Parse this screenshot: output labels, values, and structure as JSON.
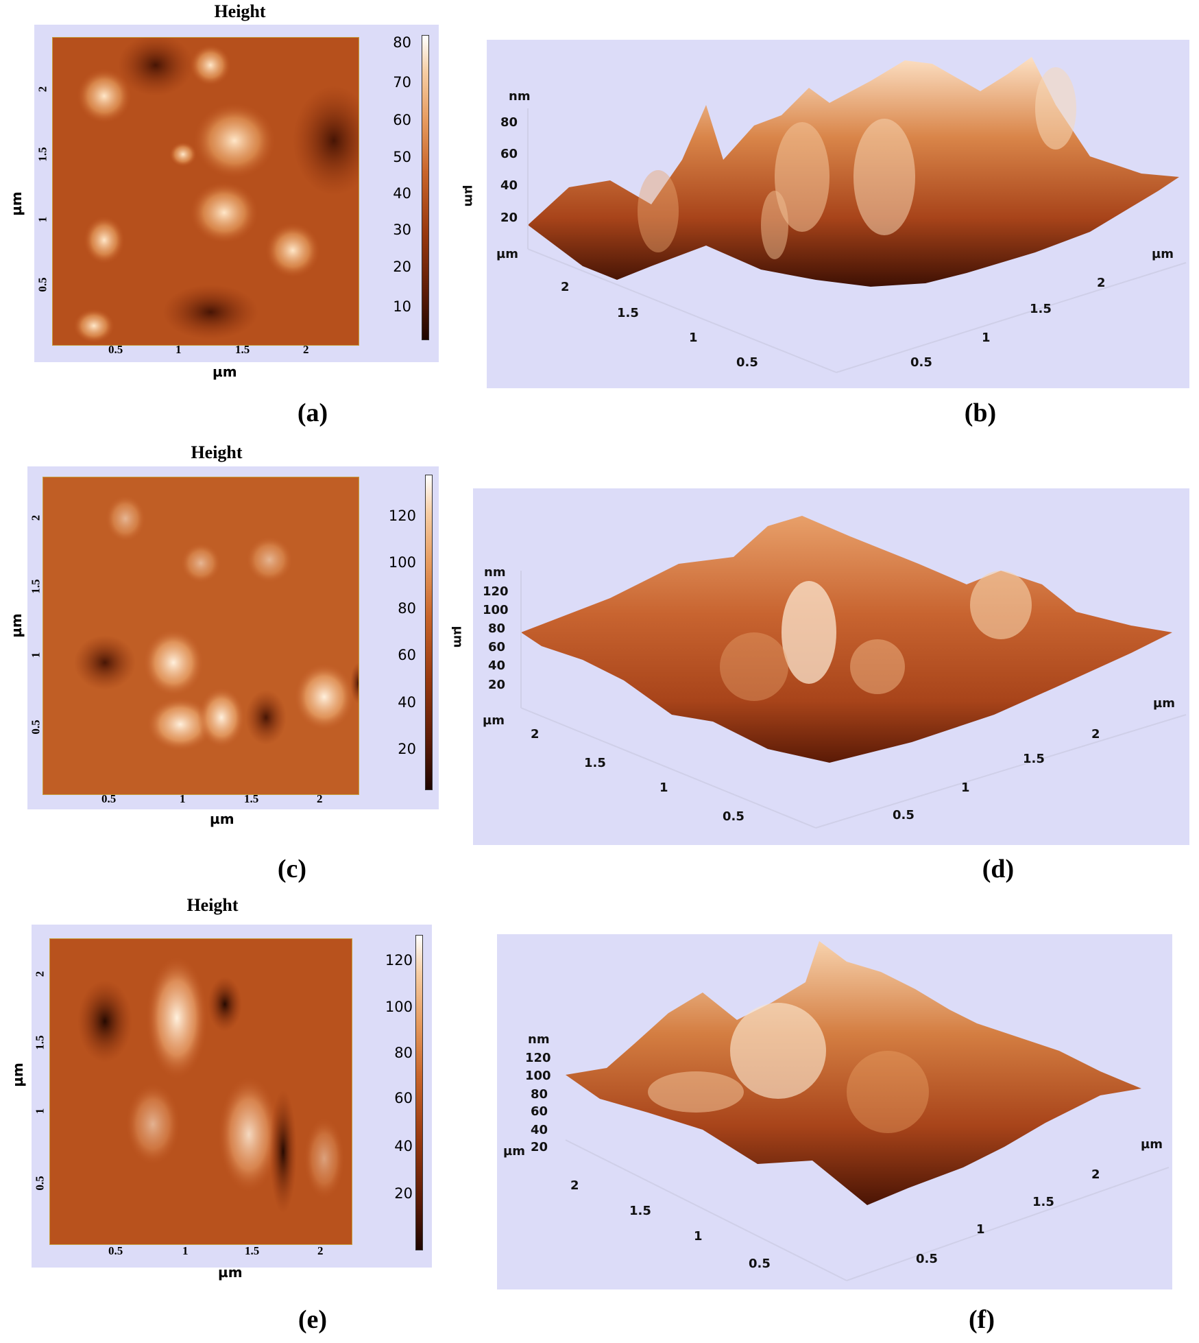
{
  "figure": {
    "rows": [
      {
        "heading": "Height",
        "map_caption": "(a)",
        "surface_caption": "(b)",
        "map_axes": {
          "x_unit": "µm",
          "y_unit": "µm",
          "x_ticks": [
            "0.5",
            "1",
            "1.5",
            "2"
          ],
          "y_ticks": [
            "0.5",
            "1",
            "1.5",
            "2"
          ]
        },
        "colorbar_ticks": [
          "80",
          "70",
          "60",
          "50",
          "40",
          "30",
          "20",
          "10"
        ],
        "surface_labels": {
          "z_unit": "nm",
          "z_ticks": [
            "80",
            "60",
            "40",
            "20"
          ],
          "side_unit": "µm",
          "left_unit": "µm",
          "right_unit": "µm",
          "left_ticks": [
            "2",
            "1.5",
            "1",
            "0.5"
          ],
          "right_ticks": [
            "2",
            "1.5",
            "1",
            "0.5"
          ]
        }
      },
      {
        "heading": "Height",
        "map_caption": "(c)",
        "surface_caption": "(d)",
        "map_axes": {
          "x_unit": "µm",
          "y_unit": "µm",
          "x_ticks": [
            "0.5",
            "1",
            "1.5",
            "2"
          ],
          "y_ticks": [
            "0.5",
            "1",
            "1.5",
            "2"
          ]
        },
        "colorbar_ticks": [
          "120",
          "100",
          "80",
          "60",
          "40",
          "20"
        ],
        "surface_labels": {
          "z_unit": "nm",
          "z_ticks": [
            "120",
            "100",
            "80",
            "60",
            "40",
            "20"
          ],
          "side_unit": "µm",
          "left_unit": "µm",
          "right_unit": "µm",
          "left_ticks": [
            "2",
            "1.5",
            "1",
            "0.5"
          ],
          "right_ticks": [
            "2",
            "1.5",
            "1",
            "0.5"
          ]
        }
      },
      {
        "heading": "Height",
        "map_caption": "(e)",
        "surface_caption": "(f)",
        "map_axes": {
          "x_unit": "µm",
          "y_unit": "µm",
          "x_ticks": [
            "0.5",
            "1",
            "1.5",
            "2"
          ],
          "y_ticks": [
            "0.5",
            "1",
            "1.5",
            "2"
          ]
        },
        "colorbar_ticks": [
          "120",
          "100",
          "80",
          "60",
          "40",
          "20"
        ],
        "surface_labels": {
          "z_unit": "nm",
          "z_ticks": [
            "120",
            "100",
            "80",
            "60",
            "40",
            "20"
          ],
          "left_unit": "µm",
          "right_unit": "µm",
          "left_ticks": [
            "2",
            "1.5",
            "1",
            "0.5"
          ],
          "right_ticks": [
            "2",
            "1.5",
            "1",
            "0.5"
          ]
        }
      }
    ]
  }
}
